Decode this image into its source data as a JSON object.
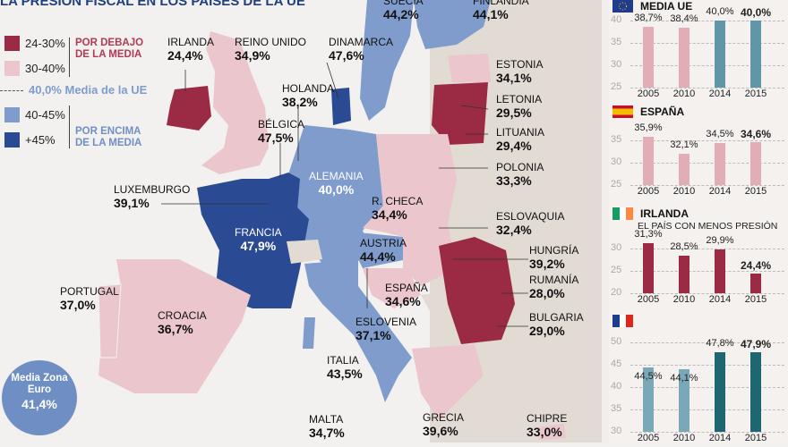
{
  "title": "LA PRESIÓN FISCAL EN LOS PAÍSES DE LA UE",
  "legend": {
    "items": [
      {
        "label": "24-30%",
        "color": "#9b2a44"
      },
      {
        "label": "30-40%",
        "color": "#ebc6cc"
      },
      {
        "label": "40-45%",
        "color": "#7f9ccc"
      },
      {
        "label": "+45%",
        "color": "#2b4a94"
      }
    ],
    "below": "POR DEBAJO DE LA MEDIA",
    "above": "POR ENCIMA DE LA MEDIA",
    "eu_value": "40,0%",
    "eu_label": "Media de la UE"
  },
  "eurozone": {
    "label": "Media Zona Euro",
    "value": "41,4%"
  },
  "countries": [
    {
      "name": "SUECIA",
      "value": "44,2%"
    },
    {
      "name": "FINLANDIA",
      "value": "44,1%"
    },
    {
      "name": "IRLANDA",
      "value": "24,4%"
    },
    {
      "name": "REINO UNIDO",
      "value": "34,9%"
    },
    {
      "name": "DINAMARCA",
      "value": "47,6%"
    },
    {
      "name": "ESTONIA",
      "value": "34,1%"
    },
    {
      "name": "HOLANDA",
      "value": "38,2%"
    },
    {
      "name": "LETONIA",
      "value": "29,5%"
    },
    {
      "name": "BÉLGICA",
      "value": "47,5%"
    },
    {
      "name": "LITUANIA",
      "value": "29,4%"
    },
    {
      "name": "ALEMANIA",
      "value": "40,0%"
    },
    {
      "name": "POLONIA",
      "value": "33,3%"
    },
    {
      "name": "LUXEMBURGO",
      "value": "39,1%"
    },
    {
      "name": "R. CHECA",
      "value": "34,4%"
    },
    {
      "name": "ESLOVAQUIA",
      "value": "32,4%"
    },
    {
      "name": "FRANCIA",
      "value": "47,9%"
    },
    {
      "name": "AUSTRIA",
      "value": "44,4%"
    },
    {
      "name": "HUNGRÍA",
      "value": "39,2%"
    },
    {
      "name": "RUMANÍA",
      "value": "28,0%"
    },
    {
      "name": "PORTUGAL",
      "value": "37,0%"
    },
    {
      "name": "CROACIA",
      "value": "36,7%"
    },
    {
      "name": "ESPAÑA",
      "value": "34,6%"
    },
    {
      "name": "BULGARIA",
      "value": "29,0%"
    },
    {
      "name": "ESLOVENIA",
      "value": "37,1%"
    },
    {
      "name": "ITALIA",
      "value": "43,5%"
    },
    {
      "name": "MALTA",
      "value": "34,7%"
    },
    {
      "name": "GRECIA",
      "value": "39,6%"
    },
    {
      "name": "CHIPRE",
      "value": "33,0%"
    }
  ],
  "chart_data": [
    {
      "type": "bar",
      "title": "MEDIA UE",
      "flag": "eu-flag",
      "categories": [
        "2005",
        "2010",
        "2014",
        "2015"
      ],
      "values": [
        38.7,
        38.4,
        40.0,
        40.0
      ],
      "labels": [
        "38,7%",
        "38,4%",
        "40,0%",
        "40,0%"
      ],
      "ylim": [
        25,
        40
      ],
      "yticks": [
        40,
        35,
        30,
        25
      ],
      "colors": [
        "#e2adb6",
        "#e2adb6",
        "#5f97a8",
        "#5f97a8"
      ]
    },
    {
      "type": "bar",
      "title": "ESPAÑA",
      "flag": "spain-flag",
      "categories": [
        "2005",
        "2010",
        "2014",
        "2015"
      ],
      "values": [
        35.9,
        32.1,
        34.5,
        34.6
      ],
      "labels": [
        "35,9%",
        "32,1%",
        "34,5%",
        "34,6%"
      ],
      "ylim": [
        25,
        35
      ],
      "yticks": [
        35,
        30,
        25
      ],
      "colors": [
        "#e2adb6",
        "#e2adb6",
        "#e2adb6",
        "#e2adb6"
      ]
    },
    {
      "type": "bar",
      "title": "IRLANDA",
      "subtitle": "EL PAÍS CON MENOS PRESIÓN",
      "flag": "ireland-flag",
      "categories": [
        "2005",
        "2010",
        "2014",
        "2015"
      ],
      "values": [
        31.3,
        28.5,
        29.9,
        24.4
      ],
      "labels": [
        "31,3%",
        "28,5%",
        "29,9%",
        "24,4%"
      ],
      "ylim": [
        20,
        30
      ],
      "yticks": [
        30,
        25,
        20
      ],
      "colors": [
        "#9b2a44",
        "#9b2a44",
        "#9b2a44",
        "#9b2a44"
      ]
    },
    {
      "type": "bar",
      "title": "",
      "flag": "france-flag",
      "categories": [
        "2005",
        "2010",
        "2014",
        "2015"
      ],
      "values": [
        44.5,
        44.1,
        47.8,
        47.9
      ],
      "labels": [
        "44,5%",
        "44,1%",
        "47,8%",
        "47,9%"
      ],
      "ylim": [
        30,
        50
      ],
      "yticks": [
        50,
        45,
        40,
        35,
        30
      ],
      "colors": [
        "#7aa8b8",
        "#7aa8b8",
        "#1f6673",
        "#1f6673"
      ]
    }
  ]
}
